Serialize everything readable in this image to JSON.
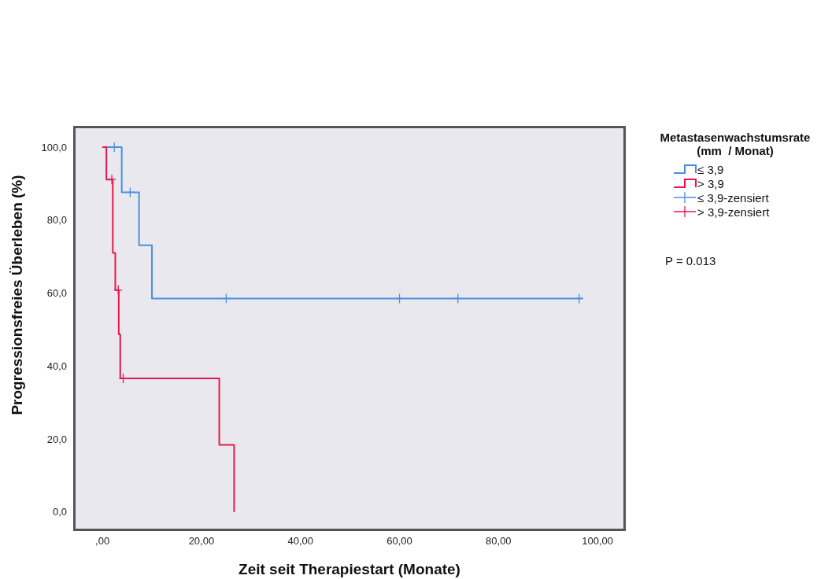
{
  "chart_data": {
    "type": "step",
    "xlabel": "Zeit seit Therapiestart (Monate)",
    "ylabel": "Progressionsfreies Überleben (%)",
    "legend_title": "Metastasenwachstumsrate\n(mm  / Monat)",
    "legend": "right",
    "xlim": [
      -5.9,
      105.7
    ],
    "xticks": [
      {
        "value": 0,
        "label": ",00"
      },
      {
        "value": 20,
        "label": "20,00"
      },
      {
        "value": 40,
        "label": "40,00"
      },
      {
        "value": 60,
        "label": "60,00"
      },
      {
        "value": 80,
        "label": "80,00"
      },
      {
        "value": 100,
        "label": "100,00"
      }
    ],
    "ylim": [
      -5.2,
      105.8
    ],
    "yticks": [
      {
        "value": 0,
        "label": "0,0"
      },
      {
        "value": 20,
        "label": "20,0"
      },
      {
        "value": 40,
        "label": "40,0"
      },
      {
        "value": 60,
        "label": "60,0"
      },
      {
        "value": 80,
        "label": "80,0"
      },
      {
        "value": 100,
        "label": "100,0"
      }
    ],
    "series": [
      {
        "name": "≤ 3,9",
        "color": "#4a90e2",
        "x": [
          0,
          3.9,
          7.4,
          10.0,
          97
        ],
        "values": [
          100,
          87.6,
          73.1,
          58.5,
          58.5
        ]
      },
      {
        "name": "> 3,9",
        "color": "#e8184a",
        "x": [
          0,
          0.8,
          2.1,
          2.6,
          3.3,
          3.6,
          23.6,
          26.6
        ],
        "values": [
          100,
          91.1,
          71.0,
          60.8,
          48.7,
          36.6,
          18.4,
          0
        ]
      },
      {
        "name": "≤ 3,9-zensiert",
        "type": "scatter",
        "marker": "cross",
        "color": "#4a90e2",
        "x": [
          2.4,
          5.6,
          25,
          60,
          71.8,
          96.3
        ],
        "values": [
          100,
          87.6,
          58.5,
          58.5,
          58.5,
          58.5
        ]
      },
      {
        "name": "> 3,9-zensiert",
        "type": "scatter",
        "marker": "cross",
        "color": "#e8184a",
        "x": [
          1.9,
          3.2,
          4.2
        ],
        "values": [
          91.1,
          60.8,
          36.6
        ]
      }
    ],
    "annotations": [
      "P = 0.013"
    ]
  }
}
